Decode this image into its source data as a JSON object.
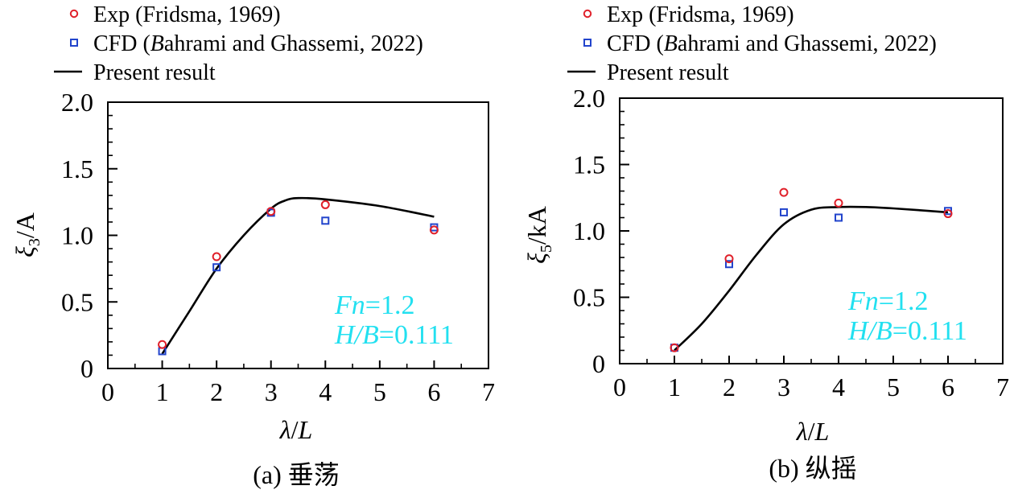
{
  "chart_data": [
    {
      "type": "line",
      "title": "",
      "caption_prefix": "(a) ",
      "caption_cn": "垂荡",
      "xlabel_lambda": "λ",
      "xlabel_rest": "/L",
      "ylabel_xi": "ξ",
      "ylabel_sub": "3",
      "ylabel_rest": "/A",
      "xlim": [
        0,
        7
      ],
      "ylim": [
        0,
        2.0
      ],
      "xticks": [
        0,
        1,
        2,
        3,
        4,
        5,
        6,
        7
      ],
      "xtick_labels": [
        "0",
        "1",
        "2",
        "3",
        "4",
        "5",
        "6",
        "7"
      ],
      "yticks": [
        0,
        0.5,
        1.0,
        1.5,
        2.0
      ],
      "ytick_labels": [
        "0",
        "0.5",
        "1.0",
        "1.5",
        "2.0"
      ],
      "annotation_fn": "Fn=1.2",
      "annotation_hb": "H/B=0.111",
      "legend": [
        {
          "marker": "circle",
          "label": "Exp (Fridsma, 1969)"
        },
        {
          "marker": "square",
          "label": "CFD  (Bahrami and Ghassemi, 2022)"
        },
        {
          "marker": "line",
          "label": "Present result"
        }
      ],
      "series": [
        {
          "name": "Exp (Fridsma, 1969)",
          "style": "circle",
          "x": [
            1,
            2,
            3,
            4,
            6
          ],
          "y": [
            0.18,
            0.84,
            1.18,
            1.23,
            1.04
          ]
        },
        {
          "name": "CFD (Bahrami and Ghassemi, 2022)",
          "style": "square",
          "x": [
            1,
            2,
            3,
            4,
            6
          ],
          "y": [
            0.13,
            0.76,
            1.17,
            1.11,
            1.06
          ]
        },
        {
          "name": "Present result",
          "style": "line",
          "x": [
            1,
            1.5,
            2,
            2.5,
            3,
            3.25,
            3.5,
            4,
            5,
            6
          ],
          "y": [
            0.11,
            0.43,
            0.75,
            1.0,
            1.2,
            1.26,
            1.28,
            1.27,
            1.22,
            1.14
          ]
        }
      ]
    },
    {
      "type": "line",
      "title": "",
      "caption_prefix": "(b) ",
      "caption_cn": "纵摇",
      "xlabel_lambda": "λ",
      "xlabel_rest": "/L",
      "ylabel_xi": "ξ",
      "ylabel_sub": "5",
      "ylabel_rest": "/kA",
      "xlim": [
        0,
        7
      ],
      "ylim": [
        0,
        2.0
      ],
      "xticks": [
        0,
        1,
        2,
        3,
        4,
        5,
        6,
        7
      ],
      "xtick_labels": [
        "0",
        "1",
        "2",
        "3",
        "4",
        "5",
        "6",
        "7"
      ],
      "yticks": [
        0,
        0.5,
        1.0,
        1.5,
        2.0
      ],
      "ytick_labels": [
        "0",
        "0.5",
        "1.0",
        "1.5",
        "2.0"
      ],
      "annotation_fn": "Fn=1.2",
      "annotation_hb": "H/B=0.111",
      "legend": [
        {
          "marker": "circle",
          "label": "Exp (Fridsma, 1969)"
        },
        {
          "marker": "square",
          "label": "CFD  (Bahrami and Ghassemi, 2022)"
        },
        {
          "marker": "line",
          "label": "Present result"
        }
      ],
      "series": [
        {
          "name": "Exp (Fridsma, 1969)",
          "style": "circle",
          "x": [
            1,
            2,
            3,
            4,
            6
          ],
          "y": [
            0.12,
            0.79,
            1.29,
            1.21,
            1.13
          ]
        },
        {
          "name": "CFD (Bahrami and Ghassemi, 2022)",
          "style": "square",
          "x": [
            1,
            2,
            3,
            4,
            6
          ],
          "y": [
            0.12,
            0.75,
            1.14,
            1.1,
            1.15
          ]
        },
        {
          "name": "Present result",
          "style": "line",
          "x": [
            1,
            1.5,
            2,
            2.5,
            3,
            3.5,
            4,
            4.5,
            5,
            6
          ],
          "y": [
            0.1,
            0.3,
            0.55,
            0.82,
            1.05,
            1.16,
            1.18,
            1.18,
            1.17,
            1.14
          ]
        }
      ]
    }
  ],
  "colors": {
    "exp": "#e0202a",
    "cfd": "#2244cc",
    "line": "#000000",
    "annotation": "#22e0f0",
    "axis": "#000000"
  }
}
